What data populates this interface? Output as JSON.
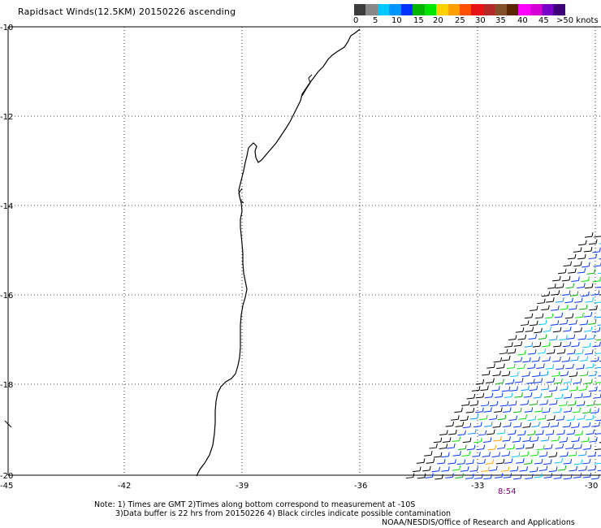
{
  "title": "Rapidsact Winds(12.5KM) 20150226 ascending",
  "legend": {
    "colors": [
      "#3c3c3c",
      "#888888",
      "#00c8ff",
      "#0096ff",
      "#0032ff",
      "#00b400",
      "#00e600",
      "#ffd200",
      "#ffa000",
      "#ff5000",
      "#e61414",
      "#b42828",
      "#825028",
      "#5a2800",
      "#ff00ff",
      "#d200d2",
      "#7800c8",
      "#3c0078"
    ],
    "labels": [
      "0",
      "5",
      "10",
      "15",
      "20",
      "25",
      "30",
      "35",
      "40",
      "45",
      ">50 knots"
    ]
  },
  "map": {
    "lat_labels": [
      "-10",
      "-12",
      "-14",
      "-16",
      "-18",
      "-20"
    ],
    "lon_labels": [
      "-45",
      "-42",
      "-39",
      "-36",
      "-33",
      "-30"
    ],
    "time_label": "8:54"
  },
  "notes": {
    "line1": "Note: 1) Times are GMT 2)Times along bottom correspond to measurement at -10S",
    "line2": "3)Data buffer is 22 hrs from 20150226 4) Black circles indicate possible contamination",
    "line3": "NOAA/NESDIS/Office of Research and Applications"
  },
  "colors": {
    "coast": "#000000",
    "grid": "#000000",
    "time_label": "#800080",
    "barb_main": "#0032ff"
  }
}
